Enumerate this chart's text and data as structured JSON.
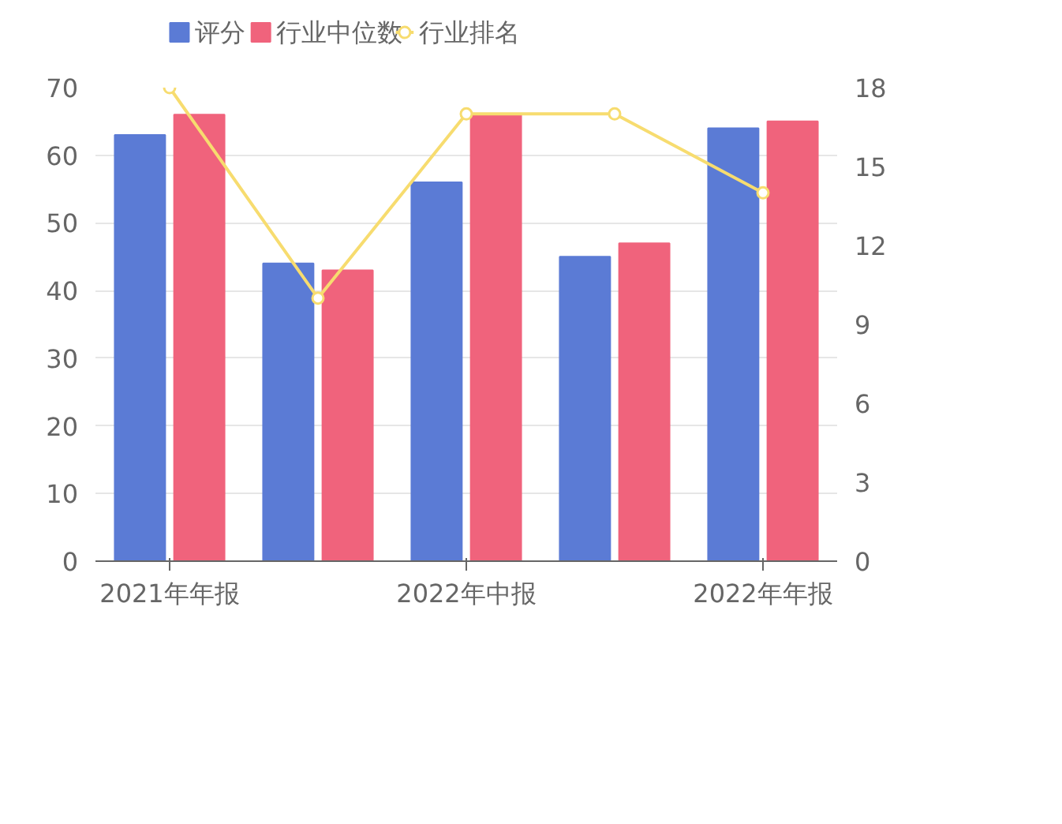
{
  "chart_data": {
    "type": "bar",
    "categories": [
      "2021年年报",
      null,
      "2022年中报",
      null,
      "2022年年报"
    ],
    "series": [
      {
        "name": "评分",
        "color": "#5b7bd5",
        "values": [
          63,
          44,
          56,
          45,
          64
        ]
      },
      {
        "name": "行业中位数",
        "color": "#f0637c",
        "values": [
          66,
          43,
          66,
          47,
          65
        ]
      },
      {
        "name": "行业排名",
        "color": "#f7dc6f",
        "type": "line",
        "axis": "y2",
        "marker": "circle",
        "values": [
          18,
          10,
          17,
          17,
          14
        ]
      }
    ],
    "ylim": [
      0,
      70
    ],
    "yticks": [
      0,
      10,
      20,
      30,
      40,
      50,
      60,
      70
    ],
    "y2lim": [
      0,
      18
    ],
    "y2ticks": [
      0,
      3,
      6,
      9,
      12,
      15,
      18
    ],
    "grid": "y",
    "legend": "top left"
  }
}
